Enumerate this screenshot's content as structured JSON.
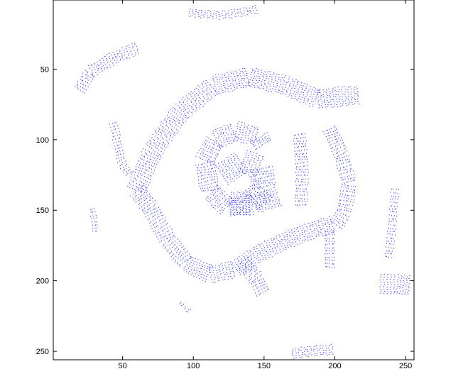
{
  "chart_data": {
    "type": "quiver",
    "title": "",
    "xlabel": "",
    "ylabel": "",
    "xlim": [
      1,
      256
    ],
    "ylim": [
      256,
      1
    ],
    "y_reversed": true,
    "grid": false,
    "legend": "none",
    "series_color": "#0000ff",
    "xticks": [
      50,
      100,
      150,
      200,
      250
    ],
    "yticks": [
      50,
      100,
      150,
      200,
      250
    ],
    "xtick_labels": [
      "50",
      "100",
      "150",
      "200",
      "250"
    ],
    "ytick_labels": [
      "50",
      "100",
      "150",
      "200",
      "250"
    ],
    "features": [
      {
        "name": "outer-arc",
        "path": [
          [
            60,
            136
          ],
          [
            72,
            108
          ],
          [
            92,
            80
          ],
          [
            115,
            62
          ],
          [
            140,
            56
          ],
          [
            165,
            62
          ],
          [
            188,
            72
          ],
          [
            205,
            70
          ],
          [
            218,
            69
          ]
        ],
        "width": 14
      },
      {
        "name": "inner-arc",
        "path": [
          [
            60,
            136
          ],
          [
            70,
            150
          ],
          [
            82,
            172
          ],
          [
            95,
            188
          ],
          [
            112,
            196
          ],
          [
            130,
            192
          ],
          [
            145,
            182
          ],
          [
            165,
            172
          ],
          [
            183,
            165
          ],
          [
            200,
            160
          ]
        ],
        "width": 12
      },
      {
        "name": "right-band",
        "path": [
          [
            196,
            92
          ],
          [
            205,
            112
          ],
          [
            210,
            132
          ],
          [
            206,
            152
          ],
          [
            200,
            162
          ]
        ],
        "width": 10
      },
      {
        "name": "inner-hook",
        "path": [
          [
            160,
            140
          ],
          [
            142,
            146
          ],
          [
            124,
            148
          ],
          [
            112,
            136
          ],
          [
            108,
            115
          ],
          [
            116,
            100
          ],
          [
            130,
            94
          ],
          [
            146,
            98
          ],
          [
            150,
            105
          ]
        ],
        "width": 13
      },
      {
        "name": "core-blob",
        "path": [
          [
            120,
            125
          ],
          [
            135,
            115
          ],
          [
            148,
            120
          ],
          [
            150,
            135
          ],
          [
            140,
            145
          ],
          [
            125,
            145
          ]
        ],
        "width": 16
      },
      {
        "name": "centre-strip",
        "path": [
          [
            175,
            96
          ],
          [
            177,
            125
          ],
          [
            176,
            148
          ]
        ],
        "width": 8
      },
      {
        "name": "connector",
        "path": [
          [
            135,
            186
          ],
          [
            145,
            200
          ],
          [
            150,
            210
          ]
        ],
        "width": 10
      },
      {
        "name": "top-left-arc",
        "path": [
          [
            20,
            65
          ],
          [
            28,
            52
          ],
          [
            45,
            42
          ],
          [
            62,
            35
          ]
        ],
        "width": 9
      },
      {
        "name": "left-rib",
        "path": [
          [
            43,
            88
          ],
          [
            48,
            115
          ],
          [
            55,
            126
          ]
        ],
        "width": 6
      },
      {
        "name": "top-streak",
        "path": [
          [
            97,
            10
          ],
          [
            118,
            12
          ],
          [
            140,
            9
          ],
          [
            146,
            7
          ]
        ],
        "width": 5
      },
      {
        "name": "bottom-streak",
        "path": [
          [
            170,
            252
          ],
          [
            185,
            250
          ],
          [
            200,
            249
          ]
        ],
        "width": 7
      },
      {
        "name": "right-blob",
        "path": [
          [
            232,
            203
          ],
          [
            244,
            203
          ],
          [
            254,
            204
          ]
        ],
        "width": 14
      },
      {
        "name": "right-edge-strip",
        "path": [
          [
            242,
            135
          ],
          [
            240,
            160
          ],
          [
            237,
            185
          ]
        ],
        "width": 6
      },
      {
        "name": "lower-right-strip",
        "path": [
          [
            196,
            165
          ],
          [
            196,
            185
          ],
          [
            196,
            192
          ]
        ],
        "width": 7
      },
      {
        "name": "left-specks",
        "path": [
          [
            28,
            149
          ],
          [
            30,
            160
          ],
          [
            30,
            166
          ]
        ],
        "width": 4
      },
      {
        "name": "lower-left-specks",
        "path": [
          [
            90,
            216
          ],
          [
            95,
            221
          ],
          [
            98,
            223
          ]
        ],
        "width": 3
      }
    ]
  }
}
